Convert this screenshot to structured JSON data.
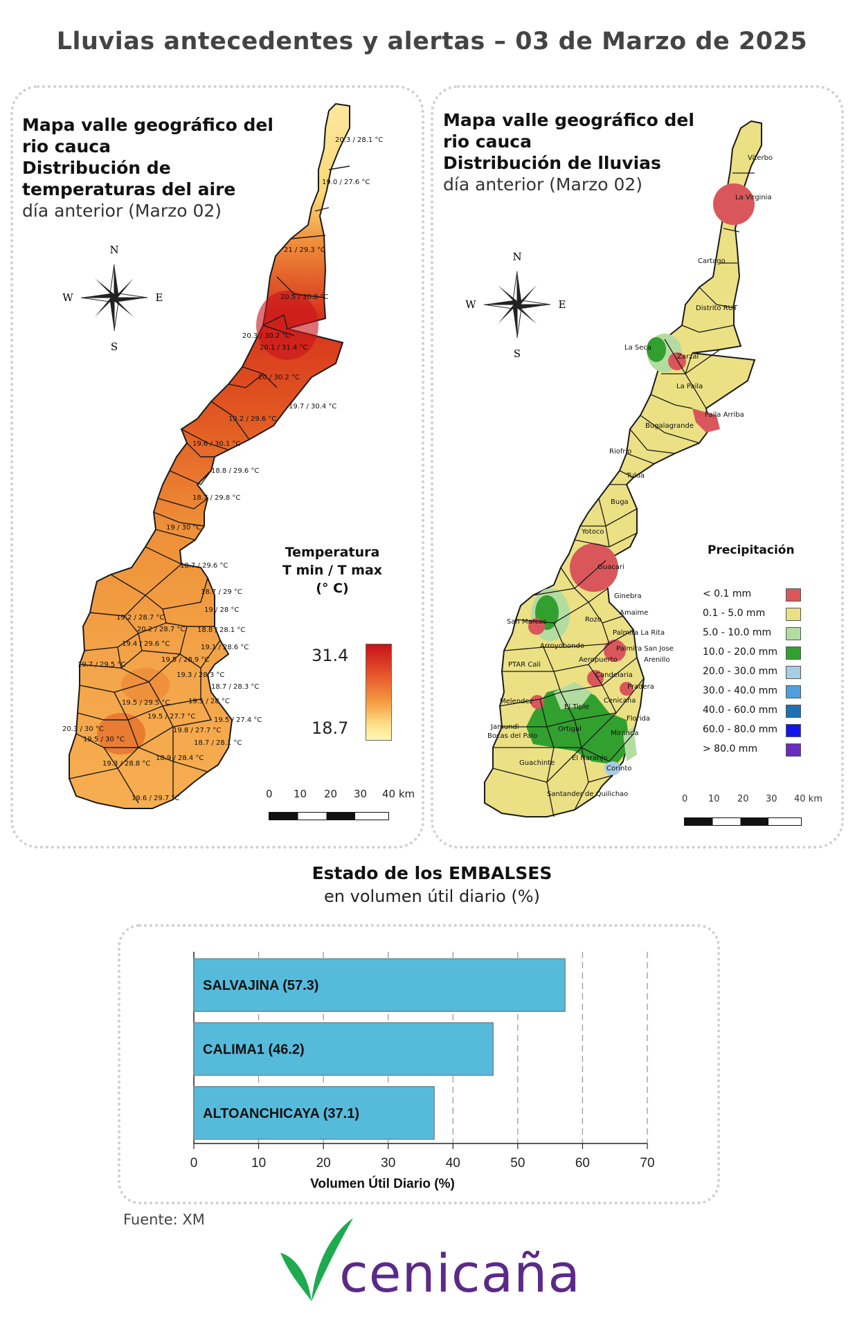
{
  "title": "Lluvias antecedentes y alertas – 03 de Marzo de 2025",
  "compass": {
    "n": "N",
    "s": "S",
    "e": "E",
    "w": "W"
  },
  "temp_map": {
    "title_lines": [
      "Mapa valle geográfico del",
      "rio cauca",
      "Distribución de",
      "temperaturas del aire"
    ],
    "subtitle": "día anterior (Marzo 02)",
    "legend_title_lines": [
      "Temperatura",
      "T min / T max",
      "(° C)"
    ],
    "legend_max": "31.4",
    "legend_min": "18.7",
    "colors": {
      "max": "#c8121a",
      "min": "#fff6b8"
    },
    "scale_ticks": [
      "0",
      "10",
      "20",
      "30",
      "40 km"
    ],
    "stations": [
      "20.3 / 28.1 °C",
      "19.0 / 27.6 °C",
      "21 / 29.3 °C",
      "20.5 / 30.8 °C",
      "20.3 / 30.2 °C",
      "20.1 / 31.4 °C",
      "20 / 30.2 °C",
      "19.7 / 30.4 °C",
      "19.2 / 29.6 °C",
      "19.6 / 30.1 °C",
      "18.8 / 29.6 °C",
      "18.7 / 29.8 °C",
      "19 / 30 °C",
      "18.7 / 29.6 °C",
      "18.7 / 29 °C",
      "19 / 28 °C",
      "19.2 / 28.7 °C",
      "20.2 / 28.7 °C",
      "18.8 / 28.1 °C",
      "19.4 / 29.6 °C",
      "19.1 / 28.6 °C",
      "19.5 / 28.9 °C",
      "19.7 / 29.5 °C",
      "19.3 / 28.3 °C",
      "18.7 / 28.3 °C",
      "19.5 / 29.5 °C",
      "19.5 / 28 °C",
      "19.5 / 27.7 °C",
      "19.5 / 27.4 °C",
      "20.3 / 30 °C",
      "19.5 / 30 °C",
      "19.8 / 27.7 °C",
      "18.7 / 28.1 °C",
      "19.3 / 28.8 °C",
      "18.9 / 28.4 °C",
      "19.6 / 29.7 °C"
    ]
  },
  "rain_map": {
    "title_lines": [
      "Mapa valle geográfico del",
      "rio cauca",
      "Distribución de lluvias"
    ],
    "subtitle": "día anterior (Marzo 02)",
    "legend_title": "Precipitación",
    "legend": [
      {
        "label": "< 0.1 mm",
        "color": "#d9575b"
      },
      {
        "label": "0.1 - 5.0 mm",
        "color": "#ebe084"
      },
      {
        "label": "5.0 - 10.0 mm",
        "color": "#b3dca0"
      },
      {
        "label": "10.0 - 20.0 mm",
        "color": "#32a02e"
      },
      {
        "label": "20.0 - 30.0 mm",
        "color": "#a6cde3"
      },
      {
        "label": "30.0 - 40.0 mm",
        "color": "#4e9fdc"
      },
      {
        "label": "40.0 - 60.0 mm",
        "color": "#1f6fb4"
      },
      {
        "label": "60.0 - 80.0 mm",
        "color": "#1414ee"
      },
      {
        "label": "> 80.0 mm",
        "color": "#6a2bc0"
      }
    ],
    "scale_ticks": [
      "0",
      "10",
      "20",
      "30",
      "40 km"
    ],
    "places": [
      "Viterbo",
      "La Virginia",
      "Cartago",
      "Distrito RUT",
      "La Seca",
      "Zarzal",
      "La Paila",
      "Paila Arriba",
      "Bugalagrande",
      "Riofrio",
      "Tulua",
      "Buga",
      "Yotoco",
      "Guacari",
      "Ginebra",
      "San Marcos",
      "Rozo",
      "Amaime",
      "Palmira La Rita",
      "Arroyohondo",
      "Palmira San Jose",
      "PTAR Cali",
      "Aeropuerto",
      "Arenillo",
      "Candelaria",
      "Pradera",
      "Melendez",
      "El Tiple",
      "Cenicaña",
      "Jamundi",
      "Bocas del Palo",
      "Ortigal",
      "Florida",
      "Miranda",
      "El Naranjo",
      "Guachinte",
      "Corinto",
      "Santander de Quilichao"
    ]
  },
  "reservoirs": {
    "heading": "Estado de los EMBALSES",
    "subheading": "en volumen útil diario (%)",
    "fuente": "Fuente: XM"
  },
  "chart_data": {
    "type": "bar",
    "orientation": "horizontal",
    "categories": [
      "SALVAJINA (57.3)",
      "CALIMA1 (46.2)",
      "ALTOANCHICAYA (37.1)"
    ],
    "values": [
      57.3,
      46.2,
      37.1
    ],
    "xlabel": "Volumen Útil Diario (%)",
    "xlim": [
      0,
      70
    ],
    "xticks": [
      "0",
      "10",
      "20",
      "30",
      "40",
      "50",
      "60",
      "70"
    ],
    "grid": true,
    "bar_color": "#56bbdb"
  },
  "logo": {
    "text": "cenicaña",
    "mark_color": "#1eaa4f",
    "text_color": "#5b2a86"
  }
}
